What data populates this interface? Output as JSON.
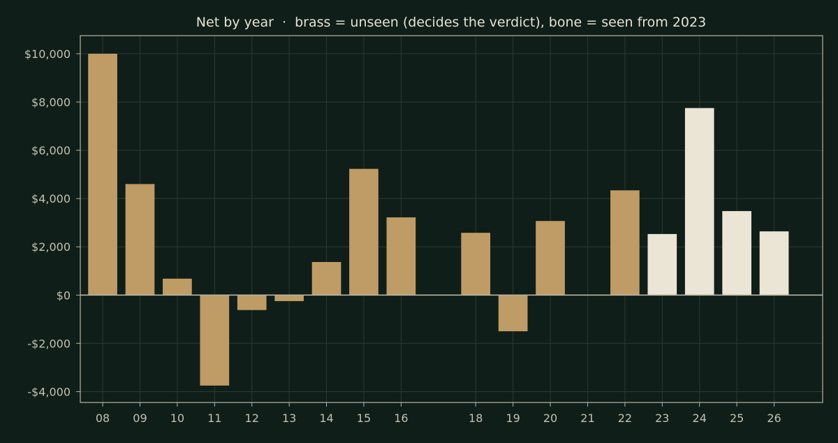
{
  "colors": {
    "background": "#0f1e19",
    "unseen": "#bf9c66",
    "seen": "#ebe5d6",
    "axis": "#b8b4a4",
    "grid": "#2c3a33",
    "text": "#e6e1d4",
    "tick_text": "#c4c0b0"
  },
  "chart_data": {
    "type": "bar",
    "title": "Net by year  ·  brass = unseen (decides the verdict), bone = seen from 2023",
    "xlabel": "",
    "ylabel": "",
    "x_positions": [
      8,
      9,
      10,
      11,
      12,
      13,
      14,
      15,
      16,
      17,
      18,
      19,
      20,
      21,
      22,
      23,
      24,
      25,
      26
    ],
    "categories": [
      "08",
      "09",
      "10",
      "11",
      "12",
      "13",
      "14",
      "15",
      "16",
      "",
      "18",
      "19",
      "20",
      "21",
      "22",
      "23",
      "24",
      "25",
      "26"
    ],
    "xlim": [
      7.4,
      27.3
    ],
    "ylim": [
      -4450,
      10750
    ],
    "yticks": [
      -4000,
      -2000,
      0,
      2000,
      4000,
      6000,
      8000,
      10000
    ],
    "ytick_labels": [
      "-$4,000",
      "-$2,000",
      "$0",
      "$2,000",
      "$4,000",
      "$6,000",
      "$8,000",
      "$10,000"
    ],
    "grid": true,
    "series": [
      {
        "group": "unseen",
        "x": [
          8,
          9,
          10,
          11,
          12,
          13,
          14,
          15,
          16,
          18,
          19,
          20,
          21,
          22
        ],
        "values": [
          10000,
          4600,
          680,
          -3750,
          -620,
          -250,
          1370,
          5230,
          3220,
          2580,
          -1500,
          3070,
          0,
          4340
        ]
      },
      {
        "group": "seen",
        "x": [
          23,
          24,
          25,
          26
        ],
        "values": [
          2530,
          7750,
          3480,
          2640
        ]
      }
    ]
  }
}
